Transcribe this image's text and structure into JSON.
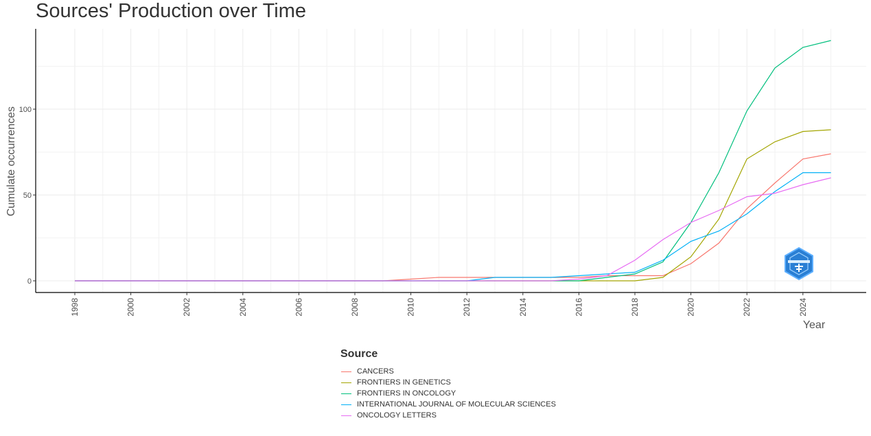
{
  "chart_data": {
    "type": "line",
    "title": "Sources' Production over Time",
    "xlabel": "Year",
    "ylabel": "Cumulate occurrences",
    "xlim": [
      1998,
      2025
    ],
    "ylim": [
      -7,
      147
    ],
    "xticks": [
      1998,
      2000,
      2002,
      2004,
      2006,
      2008,
      2010,
      2012,
      2014,
      2016,
      2018,
      2020,
      2022,
      2024
    ],
    "yticks": [
      0,
      50,
      100
    ],
    "grid": true,
    "legend": {
      "title": "Source",
      "position": "bottom"
    },
    "x": [
      1998,
      1999,
      2000,
      2001,
      2002,
      2003,
      2004,
      2005,
      2006,
      2007,
      2008,
      2009,
      2010,
      2011,
      2012,
      2013,
      2014,
      2015,
      2016,
      2017,
      2018,
      2019,
      2020,
      2021,
      2022,
      2023,
      2024,
      2025
    ],
    "series": [
      {
        "name": "CANCERS",
        "color": "#F8766D",
        "values": [
          0,
          0,
          0,
          0,
          0,
          0,
          0,
          0,
          0,
          0,
          0,
          0,
          1,
          2,
          2,
          2,
          2,
          2,
          2,
          3,
          3,
          3,
          10,
          22,
          42,
          57,
          71,
          74
        ]
      },
      {
        "name": "FRONTIERS IN GENETICS",
        "color": "#A3A500",
        "values": [
          0,
          0,
          0,
          0,
          0,
          0,
          0,
          0,
          0,
          0,
          0,
          0,
          0,
          0,
          0,
          0,
          0,
          0,
          0,
          0,
          0,
          2,
          14,
          36,
          71,
          81,
          87,
          88
        ]
      },
      {
        "name": "FRONTIERS IN ONCOLOGY",
        "color": "#00BF7D",
        "values": [
          0,
          0,
          0,
          0,
          0,
          0,
          0,
          0,
          0,
          0,
          0,
          0,
          0,
          0,
          0,
          0,
          0,
          0,
          0,
          2,
          4,
          11,
          34,
          63,
          99,
          124,
          136,
          140
        ]
      },
      {
        "name": "INTERNATIONAL JOURNAL OF MOLECULAR SCIENCES",
        "color": "#00B0F6",
        "values": [
          0,
          0,
          0,
          0,
          0,
          0,
          0,
          0,
          0,
          0,
          0,
          0,
          0,
          0,
          0,
          2,
          2,
          2,
          3,
          4,
          5,
          12,
          23,
          29,
          39,
          52,
          63,
          63
        ]
      },
      {
        "name": "ONCOLOGY LETTERS",
        "color": "#E76BF3",
        "values": [
          0,
          0,
          0,
          0,
          0,
          0,
          0,
          0,
          0,
          0,
          0,
          0,
          0,
          0,
          0,
          0,
          0,
          0,
          1,
          3,
          12,
          24,
          34,
          41,
          49,
          51,
          56,
          60
        ]
      }
    ]
  }
}
